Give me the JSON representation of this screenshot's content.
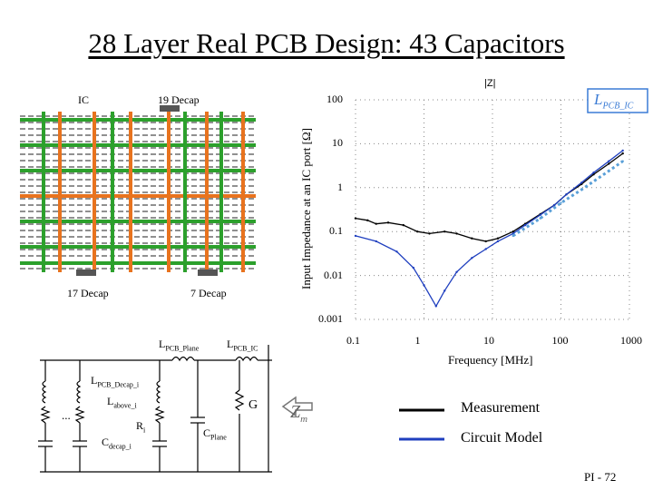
{
  "slide": {
    "title": "28 Layer Real PCB Design:  43 Capacitors",
    "footer": "PI - 72"
  },
  "pcb": {
    "label_ic": "IC",
    "label_top": "19 Decap",
    "label_bottom_left": "17 Decap",
    "label_bottom_right": "7 Decap",
    "colors": {
      "green": "#2ca02c",
      "orange": "#e8731e",
      "dash": "#222222",
      "pad": "#555555"
    }
  },
  "chart_data": {
    "type": "line",
    "title": "|Z|",
    "ylabel": "Input Impedance at an IC port [Ω]",
    "xlabel": "Frequency [MHz]",
    "xscale": "log",
    "yscale": "log",
    "xlim": [
      0.1,
      1000
    ],
    "ylim": [
      0.001,
      100
    ],
    "x_ticks": [
      "0.1",
      "1",
      "10",
      "100",
      "1000"
    ],
    "y_ticks": [
      "100",
      "10",
      "1",
      "0.1",
      "0.01",
      "0.001"
    ],
    "inset_label": "L",
    "inset_label_sub": "PCB_IC",
    "series": [
      {
        "name": "Measurement",
        "color": "#000000",
        "x": [
          0.1,
          0.15,
          0.2,
          0.3,
          0.5,
          0.8,
          1.2,
          2,
          3,
          5,
          8,
          12,
          20,
          30,
          50,
          80,
          120,
          200,
          300,
          500,
          800
        ],
        "y": [
          0.2,
          0.18,
          0.15,
          0.16,
          0.14,
          0.1,
          0.09,
          0.1,
          0.09,
          0.07,
          0.06,
          0.07,
          0.1,
          0.15,
          0.25,
          0.4,
          0.7,
          1.2,
          2.0,
          3.5,
          6.0
        ]
      },
      {
        "name": "Circuit Model",
        "color": "#1f3fbf",
        "x": [
          0.1,
          0.2,
          0.4,
          0.7,
          1,
          1.5,
          2,
          3,
          5,
          8,
          12,
          20,
          30,
          50,
          80,
          120,
          200,
          300,
          500,
          800
        ],
        "y": [
          0.08,
          0.06,
          0.035,
          0.015,
          0.006,
          0.002,
          0.0045,
          0.012,
          0.025,
          0.04,
          0.06,
          0.09,
          0.14,
          0.24,
          0.4,
          0.7,
          1.3,
          2.2,
          4.0,
          7.0
        ]
      },
      {
        "name": "L_PCB_IC",
        "color": "#5aa0d8",
        "x": [
          20,
          50,
          100,
          200,
          500,
          800
        ],
        "y": [
          0.08,
          0.2,
          0.45,
          0.9,
          2.4,
          4.0
        ]
      }
    ],
    "legend": [
      "Measurement",
      "Circuit Model"
    ]
  },
  "circuit": {
    "label_l_plane": "L",
    "label_l_plane_sub": "PCB_Plane",
    "label_l_ic": "L",
    "label_l_ic_sub": "PCB_IC",
    "label_l_decap": "L",
    "label_l_decap_sub": "PCB_Decap_i",
    "label_l_above": "L",
    "label_l_above_sub": "above_i",
    "label_r": "R",
    "label_r_sub": "i",
    "label_c_decap": "C",
    "label_c_decap_sub": "decap_i",
    "label_c_plane": "C",
    "label_c_plane_sub": "Plane",
    "label_g": "G",
    "label_zm": "Z",
    "label_zm_sub": "m",
    "ellipsis": "..."
  }
}
